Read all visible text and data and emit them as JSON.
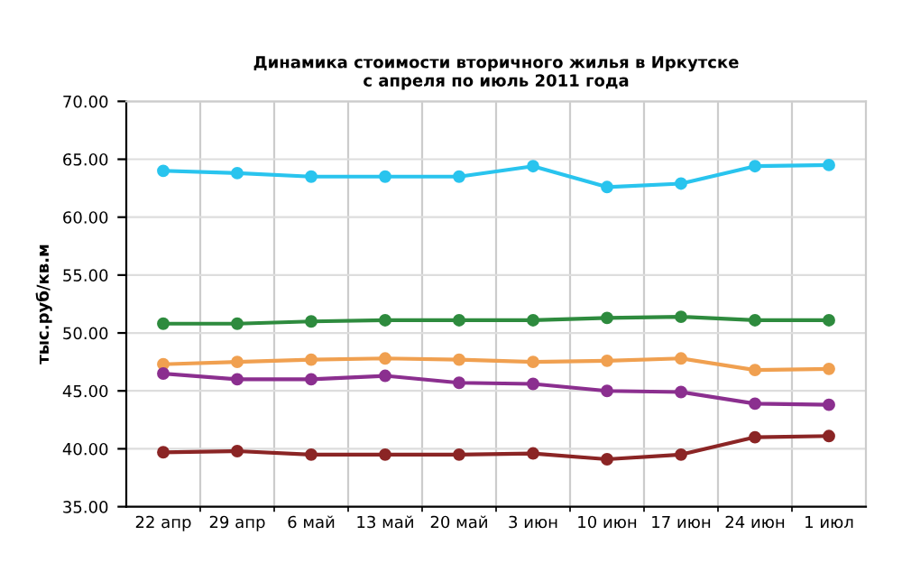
{
  "chart_data": {
    "type": "line",
    "title": "Динамика стоимости вторичного жилья в Иркутске\nс апреля по июль 2011 года",
    "ylabel": "тыс.руб/кв.м",
    "categories": [
      "22 апр",
      "29 апр",
      "6 май",
      "13 май",
      "20 май",
      "3 июн",
      "10 июн",
      "17 июн",
      "24 июн",
      "1 июл"
    ],
    "series": [
      {
        "color": "#29c4ee",
        "values": [
          64.0,
          63.8,
          63.5,
          63.5,
          63.5,
          64.4,
          62.6,
          62.9,
          64.4,
          64.5
        ]
      },
      {
        "color": "#2e8b3e",
        "values": [
          50.8,
          50.8,
          51.0,
          51.1,
          51.1,
          51.1,
          51.3,
          51.4,
          51.1,
          51.1
        ]
      },
      {
        "color": "#f0a050",
        "values": [
          47.3,
          47.5,
          47.7,
          47.8,
          47.7,
          47.5,
          47.6,
          47.8,
          46.8,
          46.9
        ]
      },
      {
        "color": "#8b2f8f",
        "values": [
          46.5,
          46.0,
          46.0,
          46.3,
          45.7,
          45.6,
          45.0,
          44.9,
          43.9,
          43.8
        ]
      },
      {
        "color": "#8b2525",
        "values": [
          39.7,
          39.8,
          39.5,
          39.5,
          39.5,
          39.6,
          39.1,
          39.5,
          41.0,
          41.1
        ]
      }
    ],
    "ylim": [
      35,
      70
    ],
    "yticks": [
      {
        "value": 35,
        "label": "35.00"
      },
      {
        "value": 40,
        "label": "40.00"
      },
      {
        "value": 45,
        "label": "45.00"
      },
      {
        "value": 50,
        "label": "50.00"
      },
      {
        "value": 55,
        "label": "55.00"
      },
      {
        "value": 60,
        "label": "60.00"
      },
      {
        "value": 65,
        "label": "65.00"
      },
      {
        "value": 70,
        "label": "70.00"
      }
    ],
    "grid": true,
    "marker": "circle",
    "line_style": "solid",
    "legend": false
  }
}
